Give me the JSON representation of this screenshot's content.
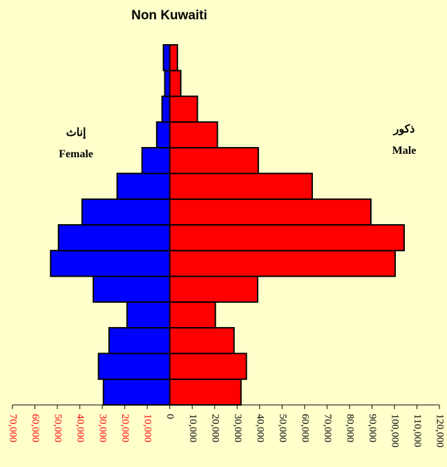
{
  "chart_data": {
    "type": "pyramid",
    "title": "Non Kuwaiti",
    "left_label": [
      "إناث",
      "Female"
    ],
    "right_label": [
      "ذكور",
      "Male"
    ],
    "categories": [
      null,
      null,
      null,
      null,
      null,
      null,
      null,
      null,
      null,
      null,
      null,
      null,
      null,
      null
    ],
    "series": [
      {
        "name": "Female",
        "color": "#0000ff",
        "side": "left",
        "values": [
          29500,
          31700,
          27000,
          19000,
          34000,
          53000,
          49500,
          39000,
          23400,
          12300,
          5800,
          3400,
          2200,
          2800
        ]
      },
      {
        "name": "Male",
        "color": "#ff0000",
        "side": "right",
        "values": [
          31700,
          34100,
          28600,
          20300,
          39100,
          100300,
          104300,
          89500,
          63400,
          39400,
          21200,
          12300,
          4900,
          3400
        ]
      }
    ],
    "xlim": [
      -70000,
      120000
    ],
    "xticks": [
      {
        "value": -70000,
        "label": "70,000"
      },
      {
        "value": -60000,
        "label": "60,000"
      },
      {
        "value": -50000,
        "label": "50,000"
      },
      {
        "value": -40000,
        "label": "40,000"
      },
      {
        "value": -30000,
        "label": "30,000"
      },
      {
        "value": -20000,
        "label": "20,000"
      },
      {
        "value": -10000,
        "label": "10,000"
      },
      0,
      {
        "value": 10000,
        "label": "10,000"
      },
      {
        "value": 20000,
        "label": "20,000"
      },
      {
        "value": 30000,
        "label": "30,000"
      },
      {
        "value": 40000,
        "label": "40,000"
      },
      {
        "value": 50000,
        "label": "50,000"
      },
      {
        "value": 60000,
        "label": "60,000"
      },
      {
        "value": 70000,
        "label": "70,000"
      },
      {
        "value": 80000,
        "label": "80,000"
      },
      {
        "value": 90000,
        "label": "90,000"
      },
      {
        "value": 100000,
        "label": "100,000"
      },
      {
        "value": 110000,
        "label": "110,000"
      },
      {
        "value": 120000,
        "label": "120,000"
      }
    ],
    "negative_tick_color": "#ff0000",
    "positive_tick_color": "#000000"
  }
}
